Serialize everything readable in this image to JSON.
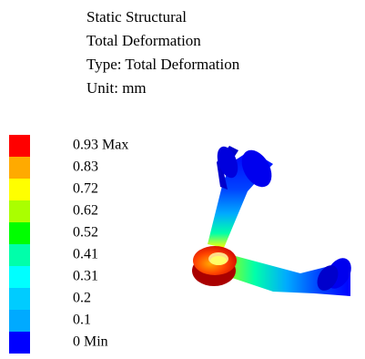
{
  "header": {
    "lines": [
      "Static Structural",
      "Total Deformation",
      "Type: Total Deformation",
      "Unit: mm"
    ]
  },
  "legend": {
    "entries": [
      {
        "label": "0.93 Max",
        "color": "#ff0000"
      },
      {
        "label": "0.83",
        "color": "#ffaa00"
      },
      {
        "label": "0.72",
        "color": "#ffff00"
      },
      {
        "label": "0.62",
        "color": "#aaff00"
      },
      {
        "label": "0.52",
        "color": "#00ff00"
      },
      {
        "label": "0.41",
        "color": "#00ffaa"
      },
      {
        "label": "0.31",
        "color": "#00ffff"
      },
      {
        "label": "0.2",
        "color": "#00ccff"
      },
      {
        "label": "0.1",
        "color": "#00aaff"
      },
      {
        "label": "0 Min",
        "color": "#0000ff"
      }
    ]
  }
}
